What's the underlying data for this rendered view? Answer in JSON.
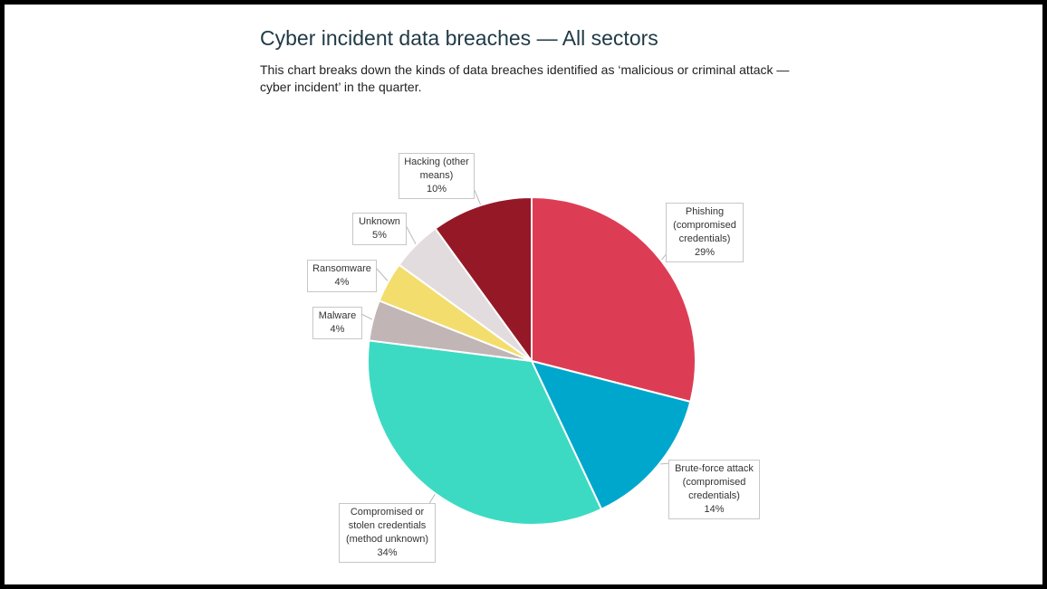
{
  "title": "Cyber incident data breaches — All sectors",
  "subtitle": "This chart breaks down the kinds of data breaches identified as ‘malicious or criminal attack — cyber incident’ in the quarter.",
  "chart_data": {
    "type": "pie",
    "title": "Cyber incident data breaches — All sectors",
    "start_angle_deg": 0,
    "direction": "clockwise",
    "slices": [
      {
        "key": "phishing",
        "label_lines": [
          "Phishing",
          "(compromised",
          "credentials)"
        ],
        "value": 29,
        "value_label": "29%",
        "color": "#dd3d54"
      },
      {
        "key": "brute-force",
        "label_lines": [
          "Brute-force attack",
          "(compromised",
          "credentials)"
        ],
        "value": 14,
        "value_label": "14%",
        "color": "#00a7cd"
      },
      {
        "key": "compromised-credentials",
        "label_lines": [
          "Compromised or",
          "stolen credentials",
          "(method unknown)"
        ],
        "value": 34,
        "value_label": "34%",
        "color": "#3ddac3"
      },
      {
        "key": "malware",
        "label_lines": [
          "Malware"
        ],
        "value": 4,
        "value_label": "4%",
        "color": "#c2b5b6"
      },
      {
        "key": "ransomware",
        "label_lines": [
          "Ransomware"
        ],
        "value": 4,
        "value_label": "4%",
        "color": "#f3dd6d"
      },
      {
        "key": "unknown",
        "label_lines": [
          "Unknown"
        ],
        "value": 5,
        "value_label": "5%",
        "color": "#e2dcde"
      },
      {
        "key": "hacking-other",
        "label_lines": [
          "Hacking (other",
          "means)"
        ],
        "value": 10,
        "value_label": "10%",
        "color": "#951827"
      }
    ]
  }
}
